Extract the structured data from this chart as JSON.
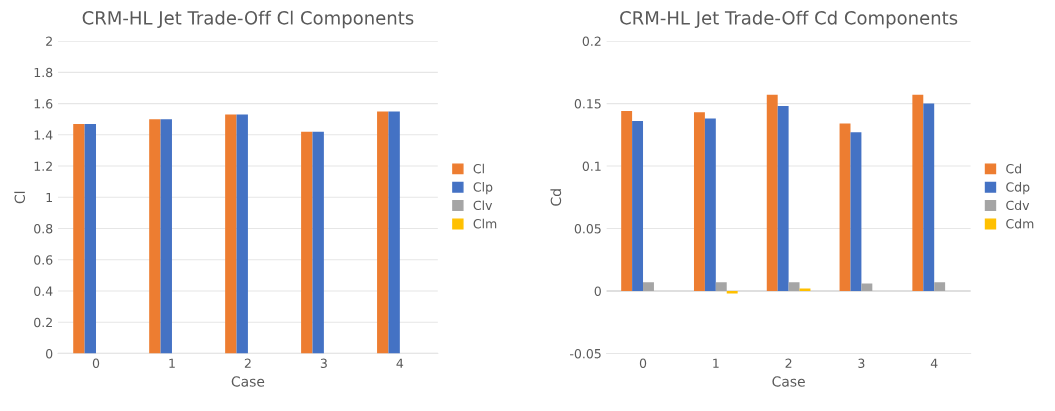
{
  "chart_data": [
    {
      "type": "bar",
      "title": "CRM-HL Jet Trade-Off Cl Components",
      "xlabel": "Case",
      "ylabel": "Cl",
      "categories": [
        "0",
        "1",
        "2",
        "3",
        "4"
      ],
      "series": [
        {
          "name": "Cl",
          "color": "#ed7d31",
          "values": [
            1.47,
            1.5,
            1.53,
            1.42,
            1.55
          ]
        },
        {
          "name": "Clp",
          "color": "#4472c4",
          "values": [
            1.47,
            1.5,
            1.53,
            1.42,
            1.55
          ]
        },
        {
          "name": "Clv",
          "color": "#a5a5a5",
          "values": [
            0,
            0,
            0,
            0,
            0
          ]
        },
        {
          "name": "Clm",
          "color": "#ffc000",
          "values": [
            0,
            0,
            0,
            0,
            0
          ]
        }
      ],
      "ylim": [
        0,
        2
      ],
      "yticks": [
        0,
        0.2,
        0.4,
        0.6,
        0.8,
        1,
        1.2,
        1.4,
        1.6,
        1.8,
        2
      ],
      "grid": "y",
      "legend": "right"
    },
    {
      "type": "bar",
      "title": "CRM-HL Jet Trade-Off Cd Components",
      "xlabel": "Case",
      "ylabel": "Cd",
      "categories": [
        "0",
        "1",
        "2",
        "3",
        "4"
      ],
      "series": [
        {
          "name": "Cd",
          "color": "#ed7d31",
          "values": [
            0.144,
            0.143,
            0.157,
            0.134,
            0.157
          ]
        },
        {
          "name": "Cdp",
          "color": "#4472c4",
          "values": [
            0.136,
            0.138,
            0.148,
            0.127,
            0.15
          ]
        },
        {
          "name": "Cdv",
          "color": "#a5a5a5",
          "values": [
            0.007,
            0.007,
            0.007,
            0.006,
            0.007
          ]
        },
        {
          "name": "Cdm",
          "color": "#ffc000",
          "values": [
            0,
            -0.002,
            0.002,
            0,
            0
          ]
        }
      ],
      "ylim": [
        -0.05,
        0.2
      ],
      "yticks": [
        -0.05,
        0,
        0.05,
        0.1,
        0.15,
        0.2
      ],
      "grid": "y",
      "legend": "right"
    }
  ]
}
